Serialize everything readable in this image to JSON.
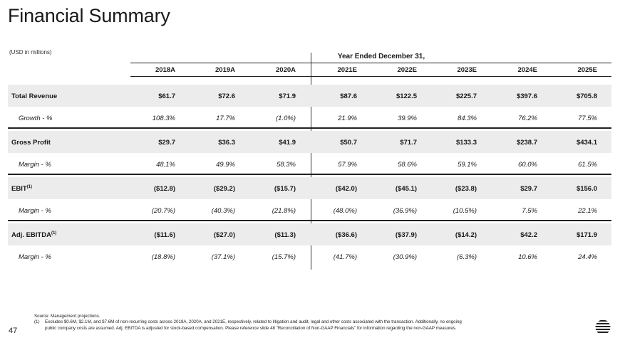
{
  "title": "Financial Summary",
  "units": "(USD in millions)",
  "span_header": "Year Ended December 31,",
  "years": [
    "2018A",
    "2019A",
    "2020A",
    "2021E",
    "2022E",
    "2023E",
    "2024E",
    "2025E"
  ],
  "rows": [
    {
      "label": "Total Revenue",
      "sup": "",
      "type": "main",
      "values": [
        "$61.7",
        "$72.6",
        "$71.9",
        "$87.6",
        "$122.5",
        "$225.7",
        "$397.6",
        "$705.8"
      ]
    },
    {
      "label": "Growth - %",
      "sup": "",
      "type": "sub",
      "values": [
        "108.3%",
        "17.7%",
        "(1.0%)",
        "21.9%",
        "39.9%",
        "84.3%",
        "76.2%",
        "77.5%"
      ]
    },
    {
      "label": "Gross Profit",
      "sup": "",
      "type": "main",
      "values": [
        "$29.7",
        "$36.3",
        "$41.9",
        "$50.7",
        "$71.7",
        "$133.3",
        "$238.7",
        "$434.1"
      ]
    },
    {
      "label": "Margin - %",
      "sup": "",
      "type": "sub",
      "values": [
        "48.1%",
        "49.9%",
        "58.3%",
        "57.9%",
        "58.6%",
        "59.1%",
        "60.0%",
        "61.5%"
      ]
    },
    {
      "label": "EBIT",
      "sup": "(1)",
      "type": "main",
      "values": [
        "($12.8)",
        "($29.2)",
        "($15.7)",
        "($42.0)",
        "($45.1)",
        "($23.8)",
        "$29.7",
        "$156.0"
      ]
    },
    {
      "label": "Margin - %",
      "sup": "",
      "type": "sub",
      "values": [
        "(20.7%)",
        "(40.3%)",
        "(21.8%)",
        "(48.0%)",
        "(36.9%)",
        "(10.5%)",
        "7.5%",
        "22.1%"
      ]
    },
    {
      "label": "Adj. EBITDA",
      "sup": "(1)",
      "type": "main",
      "values": [
        "($11.6)",
        "($27.0)",
        "($11.3)",
        "($36.6)",
        "($37.9)",
        "($14.2)",
        "$42.2",
        "$171.9"
      ]
    },
    {
      "label": "Margin - %",
      "sup": "",
      "type": "sub",
      "values": [
        "(18.8%)",
        "(37.1%)",
        "(15.7%)",
        "(41.7%)",
        "(30.9%)",
        "(6.3%)",
        "10.6%",
        "24.4%"
      ]
    }
  ],
  "footnotes": {
    "source": "Source: Management projections.",
    "note1_num": "(1)",
    "note1_line1": "Excludes $0.6M, $2.1M, and $7.6M of non-recurring costs across 2019A, 2020A, and 2021E, respectively, related to litigation and audit, legal and other costs associated with the transaction. Additionally, no ongoing",
    "note1_line2": "public company costs are assumed. Adj. EBITDA is adjusted for stock-based compensation. Please reference slide 48 \"Reconciliation of Non-GAAP Financials\" for information regarding the non-GAAP measures."
  },
  "page_number": "47",
  "logo_icon": "striped-circle-logo-icon"
}
